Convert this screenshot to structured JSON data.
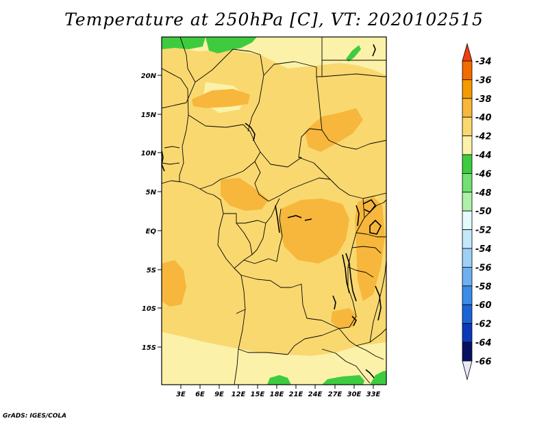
{
  "title": "Temperature at 250hPa [C], VT: 2020102515",
  "credit": "GrADS: IGES/COLA",
  "map": {
    "lat_labels": [
      "20N",
      "15N",
      "10N",
      "5N",
      "EQ",
      "5S",
      "10S",
      "15S"
    ],
    "lon_labels": [
      "3E",
      "6E",
      "9E",
      "12E",
      "15E",
      "18E",
      "21E",
      "24E",
      "27E",
      "30E",
      "33E"
    ]
  },
  "colorbar": {
    "labels": [
      "-34",
      "-36",
      "-38",
      "-40",
      "-42",
      "-44",
      "-46",
      "-48",
      "-50",
      "-52",
      "-54",
      "-56",
      "-58",
      "-60",
      "-62",
      "-64",
      "-66"
    ],
    "colors": [
      "#f04010",
      "#f26b00",
      "#f59a00",
      "#f7b73c",
      "#f9d870",
      "#fcf1a8",
      "#3ecc3e",
      "#72e072",
      "#aef0a8",
      "#e4fbfc",
      "#c3e8f9",
      "#9dd1f6",
      "#6eb0f0",
      "#3a8ce8",
      "#1a64d8",
      "#0b3ab8",
      "#061060",
      "#e8e8f8"
    ]
  },
  "colors": {
    "field_main": "#f9d870",
    "field_warm": "#f7b73c",
    "field_cool": "#fcf1a8",
    "field_cold": "#3ecc3e",
    "boundary": "#000000"
  }
}
